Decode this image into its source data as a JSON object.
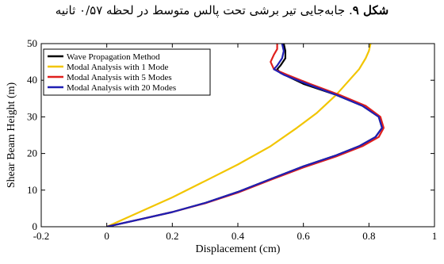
{
  "caption": {
    "label": "شکل ۹",
    "text": ". جابه‌جایی تیر برشی تحت پالس متوسط در لحظه ۰/۵۷ ثانیه"
  },
  "chart_data": {
    "type": "line",
    "xlabel": "Displacement (cm)",
    "ylabel": "Shear Beam Height (m)",
    "xlim": [
      -0.2,
      1.0
    ],
    "ylim": [
      0,
      50
    ],
    "xticks": [
      "-0.2",
      "0",
      "0.2",
      "0.4",
      "0.6",
      "0.8",
      "1"
    ],
    "yticks": [
      "0",
      "10",
      "20",
      "30",
      "40",
      "50"
    ],
    "grid": false,
    "legend_position": "top-left",
    "series": [
      {
        "name": "Wave Propagation Method",
        "color": "#000000",
        "points": [
          [
            0,
            0
          ],
          [
            0.1,
            2
          ],
          [
            0.2,
            4
          ],
          [
            0.3,
            6.5
          ],
          [
            0.4,
            9.5
          ],
          [
            0.5,
            13
          ],
          [
            0.6,
            16.5
          ],
          [
            0.7,
            19.5
          ],
          [
            0.77,
            22
          ],
          [
            0.82,
            24.5
          ],
          [
            0.84,
            27
          ],
          [
            0.83,
            30
          ],
          [
            0.78,
            33
          ],
          [
            0.7,
            36
          ],
          [
            0.6,
            39
          ],
          [
            0.53,
            42
          ],
          [
            0.52,
            43
          ],
          [
            0.53,
            44
          ],
          [
            0.545,
            46
          ],
          [
            0.545,
            48
          ],
          [
            0.54,
            50
          ]
        ]
      },
      {
        "name": "Modal Analysis with 1 Mode",
        "color": "#f2c500",
        "points": [
          [
            0,
            0
          ],
          [
            0.1,
            4
          ],
          [
            0.2,
            8
          ],
          [
            0.3,
            12.5
          ],
          [
            0.4,
            17
          ],
          [
            0.5,
            22
          ],
          [
            0.58,
            27
          ],
          [
            0.64,
            31
          ],
          [
            0.7,
            36
          ],
          [
            0.74,
            40
          ],
          [
            0.77,
            43
          ],
          [
            0.79,
            46
          ],
          [
            0.8,
            48
          ],
          [
            0.805,
            50
          ]
        ]
      },
      {
        "name": "Modal Analysis with 5 Modes",
        "color": "#e0201c",
        "points": [
          [
            0,
            0
          ],
          [
            0.1,
            2
          ],
          [
            0.2,
            4
          ],
          [
            0.3,
            6.4
          ],
          [
            0.4,
            9.3
          ],
          [
            0.5,
            12.8
          ],
          [
            0.6,
            16.2
          ],
          [
            0.7,
            19.2
          ],
          [
            0.78,
            22
          ],
          [
            0.83,
            24.5
          ],
          [
            0.845,
            27
          ],
          [
            0.835,
            30
          ],
          [
            0.79,
            33
          ],
          [
            0.71,
            36
          ],
          [
            0.62,
            39
          ],
          [
            0.55,
            41.5
          ],
          [
            0.51,
            43
          ],
          [
            0.5,
            45
          ],
          [
            0.51,
            47
          ],
          [
            0.52,
            48.5
          ],
          [
            0.52,
            50
          ]
        ]
      },
      {
        "name": "Modal Analysis with 20 Modes",
        "color": "#1f1fb4",
        "points": [
          [
            0,
            0
          ],
          [
            0.1,
            2
          ],
          [
            0.2,
            4
          ],
          [
            0.3,
            6.5
          ],
          [
            0.4,
            9.5
          ],
          [
            0.5,
            13
          ],
          [
            0.6,
            16.5
          ],
          [
            0.7,
            19.5
          ],
          [
            0.77,
            22
          ],
          [
            0.82,
            24.5
          ],
          [
            0.84,
            27
          ],
          [
            0.83,
            30
          ],
          [
            0.78,
            33
          ],
          [
            0.7,
            36
          ],
          [
            0.61,
            39
          ],
          [
            0.54,
            41.5
          ],
          [
            0.51,
            43
          ],
          [
            0.52,
            44
          ],
          [
            0.535,
            46
          ],
          [
            0.54,
            48
          ],
          [
            0.535,
            50
          ]
        ]
      }
    ]
  }
}
